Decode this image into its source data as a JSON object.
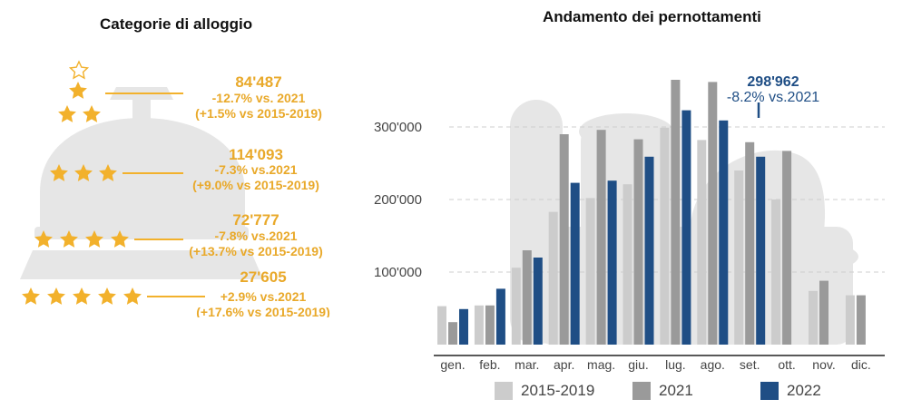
{
  "colors": {
    "gold": "#f2b12c",
    "gold_text": "#e9a92a",
    "illustration": "#e6e6e6",
    "series": [
      "#cccccc",
      "#9a9a9a",
      "#1f4e85"
    ],
    "annotation": "#1f4e85"
  },
  "left_panel": {
    "title": "Categorie di alloggio",
    "categories": [
      {
        "stars": 3,
        "value": "84'487",
        "change_2021": "-12.7% vs. 2021",
        "change_2015": "(+1.5% vs 2015-2019)"
      },
      {
        "stars": 3,
        "value": "114'093",
        "change_2021": "-7.3% vs.2021",
        "change_2015": "(+9.0% vs 2015-2019)"
      },
      {
        "stars": 4,
        "value": "72'777",
        "change_2021": "-7.8% vs.2021",
        "change_2015": "(+13.7% vs 2015-2019)"
      },
      {
        "stars": 5,
        "value": "27'605",
        "change_2021": "+2.9% vs.2021",
        "change_2015": "(+17.6% vs 2015-2019)"
      }
    ]
  },
  "right_panel": {
    "title": "Andamento dei pernottamenti",
    "annotation": {
      "value": "298'962",
      "change": "-8.2% vs.2021",
      "month_index": 8
    }
  },
  "chart_data": {
    "type": "bar",
    "title": "Andamento dei pernottamenti",
    "categories": [
      "gen.",
      "feb.",
      "mar.",
      "apr.",
      "mag.",
      "giu.",
      "lug.",
      "ago.",
      "set.",
      "ott.",
      "nov.",
      "dic."
    ],
    "series": [
      {
        "name": "2015-2019",
        "values": [
          53000,
          54000,
          106000,
          183000,
          202000,
          221000,
          299000,
          282000,
          240000,
          200000,
          74000,
          68000
        ]
      },
      {
        "name": "2021",
        "values": [
          31000,
          54000,
          130000,
          290000,
          296000,
          283000,
          365000,
          362000,
          279000,
          267000,
          88000,
          68000
        ]
      },
      {
        "name": "2022",
        "values": [
          49000,
          77000,
          120000,
          223000,
          226000,
          259000,
          323000,
          309000,
          259000,
          null,
          null,
          null
        ]
      }
    ],
    "y_ticks": [
      "100'000",
      "200'000",
      "300'000"
    ],
    "ylim": [
      0,
      400000
    ],
    "grid": true,
    "legend": "bottom"
  }
}
